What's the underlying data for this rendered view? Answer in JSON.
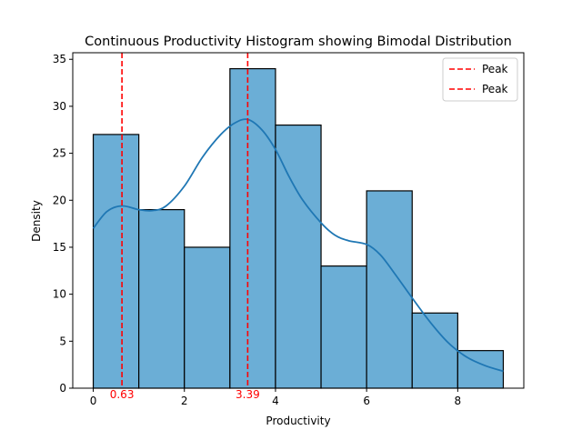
{
  "chart_data": {
    "type": "bar",
    "title": "Continuous Productivity Histogram showing Bimodal Distribution",
    "xlabel": "Productivity",
    "ylabel": "Density",
    "xlim": [
      -0.45,
      9.45
    ],
    "ylim": [
      0,
      35.7
    ],
    "xticks": [
      0,
      2,
      4,
      6,
      8
    ],
    "yticks": [
      0,
      5,
      10,
      15,
      20,
      25,
      30,
      35
    ],
    "grid": false,
    "legend_position": "top-right",
    "bins": [
      {
        "x0": 0,
        "x1": 1,
        "value": 27
      },
      {
        "x0": 1,
        "x1": 2,
        "value": 19
      },
      {
        "x0": 2,
        "x1": 3,
        "value": 15
      },
      {
        "x0": 3,
        "x1": 4,
        "value": 34
      },
      {
        "x0": 4,
        "x1": 5,
        "value": 28
      },
      {
        "x0": 5,
        "x1": 6,
        "value": 13
      },
      {
        "x0": 6,
        "x1": 7,
        "value": 21
      },
      {
        "x0": 7,
        "x1": 8,
        "value": 8
      },
      {
        "x0": 8,
        "x1": 9,
        "value": 4
      }
    ],
    "bar_color": "#6baed6",
    "kde": {
      "color": "#1f77b4",
      "x": [
        0,
        0.3,
        0.63,
        1.0,
        1.3,
        1.6,
        2.0,
        2.4,
        2.8,
        3.1,
        3.39,
        3.7,
        4.0,
        4.3,
        4.6,
        5.0,
        5.3,
        5.6,
        6.0,
        6.3,
        6.6,
        7.0,
        7.4,
        7.8,
        8.2,
        8.6,
        9.0
      ],
      "y": [
        17.0,
        18.8,
        19.4,
        19.0,
        18.9,
        19.4,
        21.5,
        24.6,
        27.0,
        28.2,
        28.6,
        27.5,
        25.4,
        22.5,
        20.0,
        17.6,
        16.3,
        15.7,
        15.3,
        14.2,
        12.3,
        9.6,
        7.0,
        4.8,
        3.3,
        2.4,
        1.8
      ]
    },
    "peaks": [
      {
        "x": 0.63,
        "label": "0.63",
        "legend": "Peak"
      },
      {
        "x": 3.39,
        "label": "3.39",
        "legend": "Peak"
      }
    ],
    "peak_color": "#ff0000"
  }
}
